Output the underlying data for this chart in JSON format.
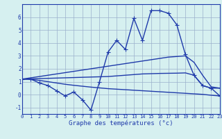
{
  "hours": [
    0,
    1,
    2,
    3,
    4,
    5,
    6,
    7,
    8,
    9,
    10,
    11,
    12,
    13,
    14,
    15,
    16,
    17,
    18,
    19,
    20,
    21,
    22,
    23
  ],
  "line1": [
    1.2,
    1.2,
    0.9,
    0.7,
    0.3,
    -0.1,
    0.2,
    -0.4,
    -1.2,
    1.0,
    3.3,
    4.2,
    3.5,
    5.9,
    4.2,
    6.5,
    6.5,
    6.3,
    5.4,
    3.1,
    1.5,
    0.7,
    0.5,
    -0.1
  ],
  "line2": [
    1.2,
    1.3,
    1.4,
    1.5,
    1.6,
    1.7,
    1.8,
    1.9,
    2.0,
    2.1,
    2.2,
    2.3,
    2.4,
    2.5,
    2.6,
    2.7,
    2.8,
    2.9,
    2.95,
    3.0,
    2.5,
    1.5,
    0.6,
    0.5
  ],
  "line3": [
    1.2,
    1.22,
    1.24,
    1.26,
    1.28,
    1.3,
    1.32,
    1.34,
    1.36,
    1.38,
    1.4,
    1.45,
    1.5,
    1.55,
    1.6,
    1.62,
    1.64,
    1.65,
    1.66,
    1.68,
    1.5,
    0.7,
    0.5,
    0.5
  ],
  "line4": [
    1.2,
    1.18,
    1.1,
    1.0,
    0.9,
    0.8,
    0.72,
    0.65,
    0.58,
    0.52,
    0.46,
    0.42,
    0.38,
    0.34,
    0.3,
    0.26,
    0.22,
    0.18,
    0.14,
    0.1,
    0.06,
    0.02,
    -0.05,
    -0.1
  ],
  "line_color": "#1f3aaa",
  "bg_color": "#d6f0f0",
  "grid_color": "#9ab0cc",
  "xlabel": "Graphe des températures (°c)",
  "xlim": [
    0,
    23
  ],
  "ylim": [
    -1.5,
    7.0
  ],
  "yticks": [
    -1,
    0,
    1,
    2,
    3,
    4,
    5,
    6
  ],
  "xticks": [
    0,
    1,
    2,
    3,
    4,
    5,
    6,
    7,
    8,
    9,
    10,
    11,
    12,
    13,
    14,
    15,
    16,
    17,
    18,
    19,
    20,
    21,
    22,
    23
  ],
  "marker": "+",
  "markersize": 4,
  "linewidth": 1.0
}
